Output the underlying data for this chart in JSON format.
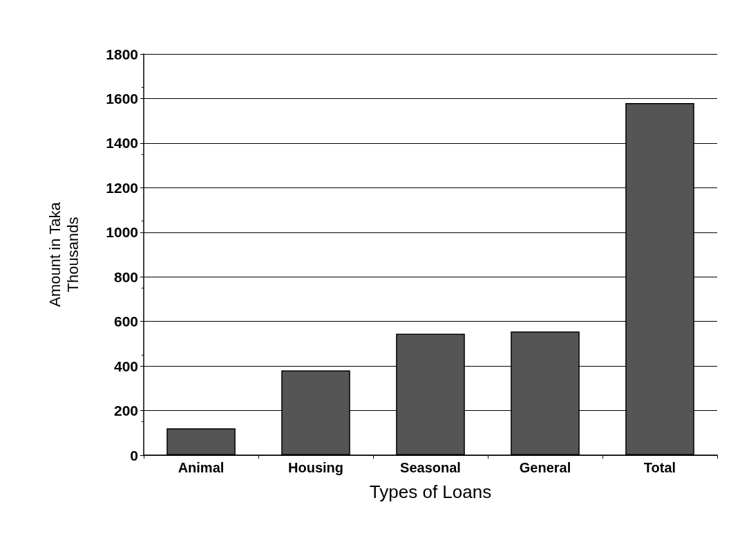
{
  "chart_data": {
    "type": "bar",
    "xlabel": "Types of Loans",
    "ylabel": "Amount in Taka\nThousands",
    "categories": [
      "Animal",
      "Housing",
      "Seasonal",
      "General",
      "Total"
    ],
    "values": [
      120,
      380,
      545,
      555,
      1580
    ],
    "color": "#555555",
    "ylim": [
      0,
      1800
    ],
    "yticks": [
      0,
      200,
      400,
      600,
      800,
      1000,
      1200,
      1400,
      1600,
      1800
    ],
    "grid": "y"
  }
}
